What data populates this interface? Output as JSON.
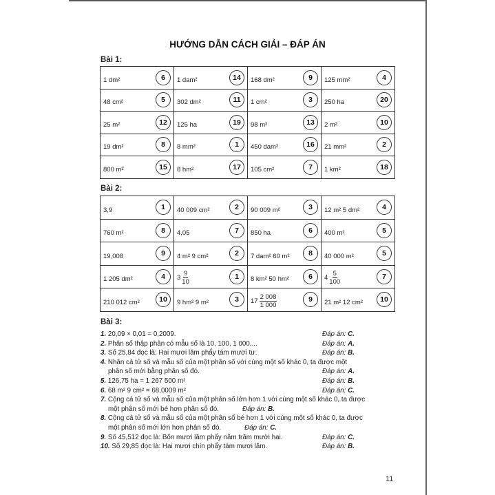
{
  "title": "HƯỚNG DẪN CÁCH GIẢI – ĐÁP ÁN",
  "bai1": {
    "label": "Bài 1:",
    "rows": [
      [
        {
          "text": "1 dm²",
          "num": "6"
        },
        {
          "text": "1 dam²",
          "num": "14"
        },
        {
          "text": "168 dm²",
          "num": "9"
        },
        {
          "text": "125 mm²",
          "num": "4"
        }
      ],
      [
        {
          "text": "48 cm²",
          "num": "5"
        },
        {
          "text": "302 dm²",
          "num": "11"
        },
        {
          "text": "1 cm²",
          "num": "3"
        },
        {
          "text": "250 ha",
          "num": "20"
        }
      ],
      [
        {
          "text": "25 m²",
          "num": "12"
        },
        {
          "text": "125 ha",
          "num": "19"
        },
        {
          "text": "98 m²",
          "num": "13"
        },
        {
          "text": "2 m²",
          "num": "10"
        }
      ],
      [
        {
          "text": "19 dm²",
          "num": "8"
        },
        {
          "text": "8 mm²",
          "num": "1"
        },
        {
          "text": "450 dam²",
          "num": "16"
        },
        {
          "text": "21 mm²",
          "num": "2"
        }
      ],
      [
        {
          "text": "800 m²",
          "num": "15"
        },
        {
          "text": "8 hm²",
          "num": "17"
        },
        {
          "text": "105 cm²",
          "num": "7"
        },
        {
          "text": "1 km²",
          "num": "18"
        }
      ]
    ]
  },
  "bai2": {
    "label": "Bài 2:",
    "rows": [
      [
        {
          "text": "3,9",
          "num": "1"
        },
        {
          "text": "40 009 cm²",
          "num": "2"
        },
        {
          "text": "90 009 m²",
          "num": "3"
        },
        {
          "text": "12 m² 5 dm²",
          "num": "4"
        }
      ],
      [
        {
          "text": "760 m²",
          "num": "8"
        },
        {
          "text": "4,05",
          "num": "7"
        },
        {
          "text": "850 ha",
          "num": "6"
        },
        {
          "text": "400 m²",
          "num": "5"
        }
      ],
      [
        {
          "text": "19,008",
          "num": "9"
        },
        {
          "text": "4 m² 9 cm²",
          "num": "2"
        },
        {
          "text": "7 dam² 60 m²",
          "num": "8"
        },
        {
          "text": "40 000 m²",
          "num": "5"
        }
      ],
      [
        {
          "text": "1 205 dm²",
          "num": "4"
        },
        {
          "whole": "3",
          "numerator": "9",
          "denominator": "10",
          "num": "1"
        },
        {
          "text": "8 km² 50 hm²",
          "num": "6"
        },
        {
          "whole": "4",
          "numerator": "5",
          "denominator": "100",
          "num": "7"
        }
      ],
      [
        {
          "text": "210 012 cm²",
          "num": "10"
        },
        {
          "text": "9 hm² 9 m²",
          "num": "3"
        },
        {
          "whole": "17",
          "numerator": "2 008",
          "denominator": "1 000",
          "num": "9"
        },
        {
          "text": "21 m² 12 cm²",
          "num": "10"
        }
      ]
    ]
  },
  "bai3": {
    "label": "Bài 3:",
    "answer_label": "Đáp án:",
    "items": [
      {
        "num": "1.",
        "text": "20,09 × 0,01 = 0,2009.",
        "answer": "C."
      },
      {
        "num": "2.",
        "text": "Phân số thập phân có mẫu số là 10, 100, 1 000,...",
        "answer": "A."
      },
      {
        "num": "3.",
        "text": "Số 25,84 đọc là: Hai mươi lăm phẩy tám mươi tư.",
        "answer": "B."
      },
      {
        "num": "4.",
        "text": "Nhân cả tử số và mẫu số của một phân số với cùng một số khác 0, ta được một",
        "text2": "phân số mới bằng phân số đó.",
        "answer": "A."
      },
      {
        "num": "5.",
        "text": "126,75 ha = 1 267 500 m²",
        "answer": "B."
      },
      {
        "num": "6.",
        "text": "68 m² 9 cm² = 68,0009 m²",
        "answer": "C."
      },
      {
        "num": "7.",
        "text": "Cộng cả tử số và mẫu số của một phân số lớn hơn 1 với cùng một số khác 0, ta được",
        "text2": "một phân số mới bé hơn phân số đó.",
        "answer": "B."
      },
      {
        "num": "8.",
        "text": "Cộng cả tử số và mẫu số của một phân số bé hơn 1 với cùng một số khác 0, ta được",
        "text2": "một phân số mới lớn hơn phân số đó.",
        "answer": "C."
      },
      {
        "num": "9.",
        "text": "Số 45,512 đọc là: Bốn mươi lăm phẩy năm trăm mười hai.",
        "answer": "C."
      },
      {
        "num": "10.",
        "text": "Số 29,85 đọc là: Hai mươi chín phẩy tám mươi lăm.",
        "answer": "B."
      }
    ]
  },
  "page_number": "11"
}
